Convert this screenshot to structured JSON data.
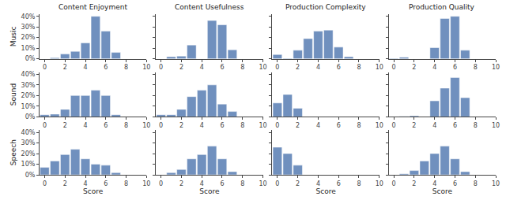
{
  "chart_data": [
    {
      "type": "bar",
      "title": "Content Enjoyment",
      "ylabel": "Music",
      "x": [
        0,
        1,
        2,
        3,
        4,
        5,
        6,
        7,
        8,
        9
      ],
      "values": [
        0.0,
        1.0,
        4.5,
        7.0,
        15.0,
        40.0,
        26.0,
        6.0,
        0.0,
        0.0
      ],
      "color": "#7090be",
      "xlim": [
        -0.5,
        10
      ],
      "ylim": [
        0,
        42
      ],
      "xticks": [
        0,
        2,
        4,
        6,
        8,
        10
      ],
      "yticks": [
        {
          "value": 0,
          "label": "0%"
        },
        {
          "value": 10,
          "label": "10%"
        },
        {
          "value": 20,
          "label": "20%"
        },
        {
          "value": 30,
          "label": "30%"
        },
        {
          "value": 40,
          "label": "40%"
        }
      ],
      "grid": false
    },
    {
      "type": "bar",
      "title": "Content Usefulness",
      "x": [
        0,
        1,
        2,
        3,
        4,
        5,
        6,
        7,
        8,
        9
      ],
      "values": [
        0.0,
        2.0,
        2.5,
        13.0,
        0.0,
        36.0,
        32.0,
        8.5,
        0.0,
        0.0
      ],
      "color": "#7090be",
      "xlim": [
        -0.5,
        10
      ],
      "ylim": [
        0,
        42
      ],
      "xticks": [
        0,
        2,
        4,
        6,
        8,
        10
      ],
      "yticks": [
        0,
        10,
        20,
        30,
        40
      ],
      "grid": false,
      "tick_labels": "x"
    },
    {
      "type": "bar",
      "title": "Production Complexity",
      "x": [
        0,
        1,
        2,
        3,
        4,
        5,
        6,
        7,
        8,
        9
      ],
      "values": [
        4.0,
        0.5,
        8.0,
        19.0,
        26.0,
        27.0,
        11.0,
        2.0,
        0.0,
        0.0
      ],
      "color": "#7090be",
      "xlim": [
        -0.5,
        10
      ],
      "ylim": [
        0,
        42
      ],
      "xticks": [
        0,
        2,
        4,
        6,
        8,
        10
      ],
      "yticks": [
        0,
        10,
        20,
        30,
        40
      ],
      "grid": false,
      "tick_labels": "x"
    },
    {
      "type": "bar",
      "title": "Production Quality",
      "x": [
        0,
        1,
        2,
        3,
        4,
        5,
        6,
        7,
        8,
        9
      ],
      "values": [
        0.5,
        1.5,
        0.0,
        0.0,
        10.5,
        38.0,
        40.0,
        8.0,
        0.0,
        0.0
      ],
      "color": "#7090be",
      "xlim": [
        -0.5,
        10
      ],
      "ylim": [
        0,
        42
      ],
      "xticks": [
        0,
        2,
        4,
        6,
        8,
        10
      ],
      "yticks": [
        0,
        10,
        20,
        30,
        40
      ],
      "grid": false,
      "tick_labels": "x"
    },
    {
      "type": "bar",
      "ylabel": "Sound",
      "x": [
        0,
        1,
        2,
        3,
        4,
        5,
        6,
        7,
        8,
        9
      ],
      "values": [
        2.0,
        2.5,
        7.0,
        20.0,
        20.0,
        25.0,
        20.0,
        2.0,
        0.0,
        0.0
      ],
      "color": "#7090be",
      "xlim": [
        -0.5,
        10
      ],
      "ylim": [
        0,
        42
      ],
      "xticks": [
        0,
        2,
        4,
        6,
        8,
        10
      ],
      "yticks": [
        {
          "value": 0,
          "label": "0%"
        },
        {
          "value": 10,
          "label": "10%"
        },
        {
          "value": 20,
          "label": "20%"
        },
        {
          "value": 30,
          "label": "30%"
        },
        {
          "value": 40,
          "label": "40%"
        }
      ],
      "grid": false
    },
    {
      "type": "bar",
      "x": [
        0,
        1,
        2,
        3,
        4,
        5,
        6,
        7,
        8,
        9
      ],
      "values": [
        2.0,
        2.0,
        7.0,
        19.0,
        25.0,
        30.0,
        12.0,
        5.0,
        0.0,
        0.0
      ],
      "color": "#7090be",
      "xlim": [
        -0.5,
        10
      ],
      "ylim": [
        0,
        42
      ],
      "xticks": [
        0,
        2,
        4,
        6,
        8,
        10
      ],
      "yticks": [
        0,
        10,
        20,
        30,
        40
      ],
      "grid": false,
      "tick_labels": "x"
    },
    {
      "type": "bar",
      "x": [
        0,
        1,
        2,
        3,
        4,
        5,
        6,
        7,
        8,
        9
      ],
      "values": [
        13.0,
        21.0,
        8.0,
        0.0,
        0.0,
        0.0,
        0.0,
        0.0,
        0.0,
        0.0
      ],
      "color": "#7090be",
      "xlim": [
        -0.5,
        10
      ],
      "ylim": [
        0,
        42
      ],
      "xticks": [
        0,
        2,
        4,
        6,
        8,
        10
      ],
      "yticks": [
        0,
        10,
        20,
        30,
        40
      ],
      "grid": false,
      "tick_labels": "x"
    },
    {
      "type": "bar",
      "x": [
        0,
        1,
        2,
        3,
        4,
        5,
        6,
        7,
        8,
        9
      ],
      "values": [
        0.0,
        0.5,
        1.0,
        0.0,
        15.0,
        27.0,
        37.0,
        18.0,
        0.0,
        0.0
      ],
      "color": "#7090be",
      "xlim": [
        -0.5,
        10
      ],
      "ylim": [
        0,
        42
      ],
      "xticks": [
        0,
        2,
        4,
        6,
        8,
        10
      ],
      "yticks": [
        0,
        10,
        20,
        30,
        40
      ],
      "grid": false,
      "tick_labels": "x"
    },
    {
      "type": "bar",
      "ylabel": "Speech",
      "xlabel": "Score",
      "x": [
        0,
        1,
        2,
        3,
        4,
        5,
        6,
        7,
        8,
        9
      ],
      "values": [
        7.0,
        13.0,
        19.0,
        24.0,
        15.0,
        10.0,
        9.0,
        2.0,
        0.0,
        0.0
      ],
      "color": "#7090be",
      "xlim": [
        -0.5,
        10
      ],
      "ylim": [
        0,
        42
      ],
      "xticks": [
        0,
        2,
        4,
        6,
        8,
        10
      ],
      "yticks": [
        {
          "value": 0,
          "label": "0%"
        },
        {
          "value": 10,
          "label": "10%"
        },
        {
          "value": 20,
          "label": "20%"
        },
        {
          "value": 30,
          "label": "30%"
        },
        {
          "value": 40,
          "label": "40%"
        }
      ],
      "grid": false
    },
    {
      "type": "bar",
      "xlabel": "Score",
      "x": [
        0,
        1,
        2,
        3,
        4,
        5,
        6,
        7,
        8,
        9
      ],
      "values": [
        0.0,
        2.0,
        5.0,
        15.0,
        19.0,
        27.0,
        15.0,
        3.0,
        0.0,
        0.0
      ],
      "color": "#7090be",
      "xlim": [
        -0.5,
        10
      ],
      "ylim": [
        0,
        42
      ],
      "xticks": [
        0,
        2,
        4,
        6,
        8,
        10
      ],
      "yticks": [
        0,
        10,
        20,
        30,
        40
      ],
      "grid": false,
      "tick_labels": "x"
    },
    {
      "type": "bar",
      "xlabel": "Score",
      "x": [
        0,
        1,
        2,
        3,
        4,
        5,
        6,
        7,
        8,
        9
      ],
      "values": [
        26.0,
        20.0,
        9.0,
        0.0,
        0.0,
        0.0,
        0.0,
        0.0,
        0.0,
        0.0
      ],
      "color": "#7090be",
      "xlim": [
        -0.5,
        10
      ],
      "ylim": [
        0,
        42
      ],
      "xticks": [
        0,
        2,
        4,
        6,
        8,
        10
      ],
      "yticks": [
        0,
        10,
        20,
        30,
        40
      ],
      "grid": false,
      "tick_labels": "x"
    },
    {
      "type": "bar",
      "xlabel": "Score",
      "x": [
        0,
        1,
        2,
        3,
        4,
        5,
        6,
        7,
        8,
        9
      ],
      "values": [
        0.0,
        1.0,
        4.0,
        13.0,
        20.0,
        27.0,
        15.0,
        3.0,
        0.0,
        0.0
      ],
      "color": "#7090be",
      "xlim": [
        -0.5,
        10
      ],
      "ylim": [
        0,
        42
      ],
      "xticks": [
        0,
        2,
        4,
        6,
        8,
        10
      ],
      "yticks": [
        0,
        10,
        20,
        30,
        40
      ],
      "grid": false,
      "tick_labels": "x"
    }
  ]
}
